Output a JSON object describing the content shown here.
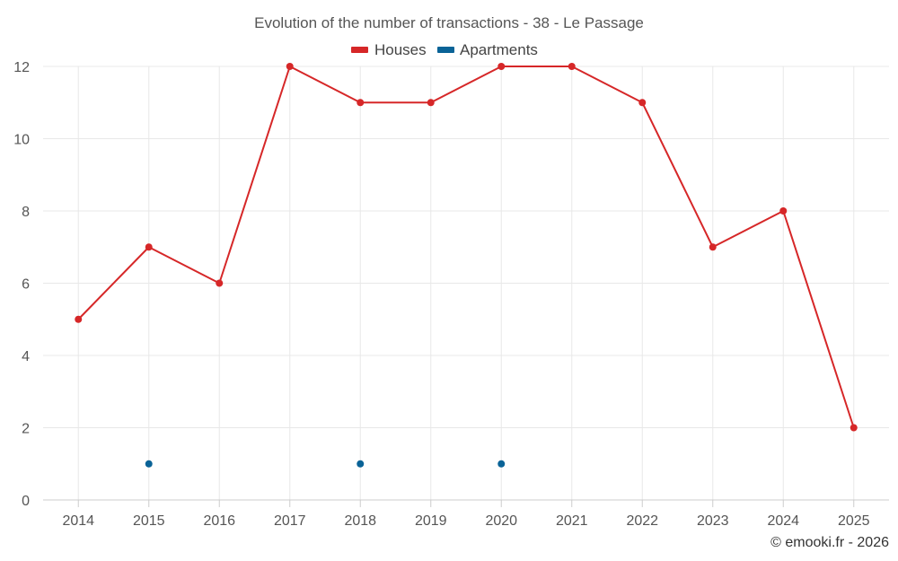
{
  "chart_data": {
    "type": "line",
    "title": "Evolution of the number of transactions - 38 - Le Passage",
    "categories": [
      "2014",
      "2015",
      "2016",
      "2017",
      "2018",
      "2019",
      "2020",
      "2021",
      "2022",
      "2023",
      "2024",
      "2025"
    ],
    "series": [
      {
        "name": "Houses",
        "color": "#d62728",
        "values": [
          5,
          7,
          6,
          12,
          11,
          11,
          12,
          12,
          11,
          7,
          8,
          2
        ]
      },
      {
        "name": "Apartments",
        "color": "#0a6397",
        "values": [
          null,
          1,
          null,
          null,
          1,
          null,
          1,
          null,
          null,
          null,
          null,
          null
        ]
      }
    ],
    "ylim": [
      0,
      12
    ],
    "yticks": [
      "0",
      "2",
      "4",
      "6",
      "8",
      "10",
      "12"
    ],
    "xlabel": "",
    "ylabel": "",
    "grid": true,
    "legend_position": "top-center"
  },
  "credit": "© emooki.fr - 2026"
}
